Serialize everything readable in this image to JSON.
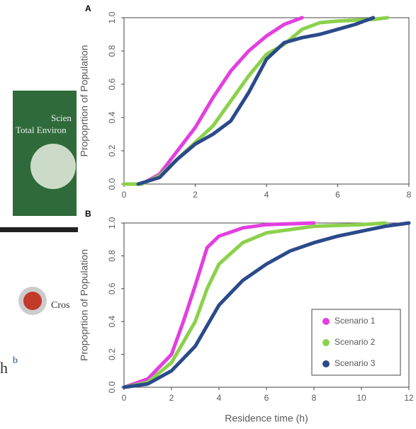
{
  "page_fragment": {
    "cover_lines": [
      "Scien",
      "Total Environ"
    ],
    "crossmark": "Cros",
    "text": "h",
    "superscript": "b"
  },
  "chart_data": [
    {
      "type": "line",
      "title": "A",
      "ylabel": "Propoprtion of Population",
      "xlim": [
        0,
        8
      ],
      "xticks": [
        0,
        2,
        4,
        6,
        8
      ],
      "ylim": [
        0,
        1
      ],
      "yticks": [
        {
          "value": 0,
          "label": "0.0"
        },
        0.2,
        0.4,
        0.6,
        0.8,
        {
          "value": 1,
          "label": "1.0"
        }
      ],
      "series": [
        {
          "color": "#e23fe0",
          "x": [
            0,
            0.5,
            1,
            1.5,
            2,
            2.5,
            3,
            3.5,
            4,
            4.5,
            5
          ],
          "values": [
            0,
            0,
            0.06,
            0.2,
            0.34,
            0.52,
            0.68,
            0.8,
            0.89,
            0.96,
            1
          ]
        },
        {
          "color": "#8bd14b",
          "x": [
            0,
            0.5,
            1,
            1.5,
            2,
            2.5,
            3,
            3.5,
            4,
            4.5,
            5,
            5.5,
            6,
            7,
            7.4
          ],
          "values": [
            0,
            0,
            0.05,
            0.15,
            0.25,
            0.35,
            0.5,
            0.65,
            0.78,
            0.84,
            0.93,
            0.97,
            0.98,
            0.99,
            1
          ]
        },
        {
          "color": "#2b4a8b",
          "x": [
            0.4,
            1,
            1.5,
            2,
            2.5,
            3,
            3.5,
            4,
            4.5,
            5,
            5.5,
            6,
            6.5,
            7
          ],
          "values": [
            0,
            0.04,
            0.15,
            0.24,
            0.3,
            0.38,
            0.55,
            0.75,
            0.85,
            0.88,
            0.9,
            0.93,
            0.96,
            1
          ]
        }
      ]
    },
    {
      "type": "line",
      "title": "B",
      "ylabel": "Propoprtion of Population",
      "xlabel": "Residence time (h)",
      "xlim": [
        0,
        12
      ],
      "xticks": [
        0,
        2,
        4,
        6,
        8,
        10,
        12
      ],
      "ylim": [
        0,
        1
      ],
      "yticks": [
        {
          "value": 0,
          "label": "0.0"
        },
        0.2,
        0.4,
        0.6,
        0.8,
        {
          "value": 1,
          "label": "1.0"
        }
      ],
      "legend": "lower right",
      "series": [
        {
          "name": "Scenario 1",
          "color": "#e23fe0",
          "x": [
            0,
            1,
            2,
            2.5,
            3,
            3.5,
            4,
            5,
            6,
            8
          ],
          "values": [
            0,
            0.05,
            0.2,
            0.4,
            0.62,
            0.85,
            0.92,
            0.97,
            0.99,
            1
          ]
        },
        {
          "name": "Scenario 2",
          "color": "#8bd14b",
          "x": [
            0,
            1,
            2,
            3,
            3.5,
            4,
            5,
            6,
            8,
            10,
            11
          ],
          "values": [
            0,
            0.03,
            0.15,
            0.4,
            0.6,
            0.75,
            0.88,
            0.94,
            0.98,
            0.99,
            1
          ]
        },
        {
          "name": "Scenario 3",
          "color": "#2b4a8b",
          "x": [
            0,
            1,
            2,
            3,
            4,
            5,
            6,
            7,
            8,
            9,
            10,
            11,
            12
          ],
          "values": [
            0,
            0.02,
            0.1,
            0.25,
            0.5,
            0.65,
            0.75,
            0.83,
            0.88,
            0.92,
            0.95,
            0.98,
            1
          ]
        }
      ]
    }
  ]
}
